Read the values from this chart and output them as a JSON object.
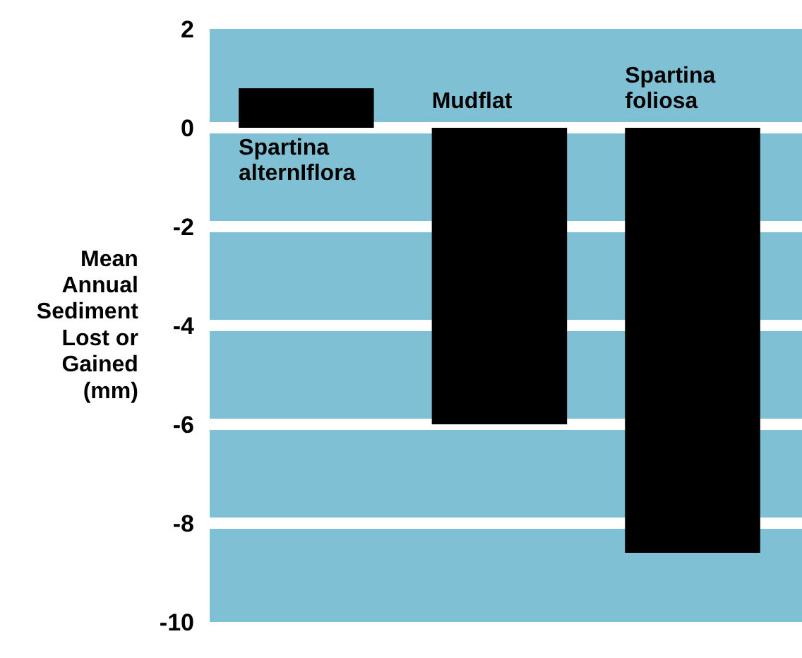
{
  "chart_data": {
    "type": "bar",
    "ylabel": "Mean\nAnnual\nSediment\nLost or\nGained\n(mm)",
    "categories": [
      "Spartina\nalternIflora",
      "Mudflat",
      "Spartina\nfoliosa"
    ],
    "values": [
      0.8,
      -6.0,
      -8.6
    ],
    "color": "#000000",
    "ylim": [
      -10,
      2
    ],
    "yticks": [
      2,
      0,
      -2,
      -4,
      -6,
      -8,
      -10
    ],
    "grid": "y",
    "tick_labels": "y"
  }
}
